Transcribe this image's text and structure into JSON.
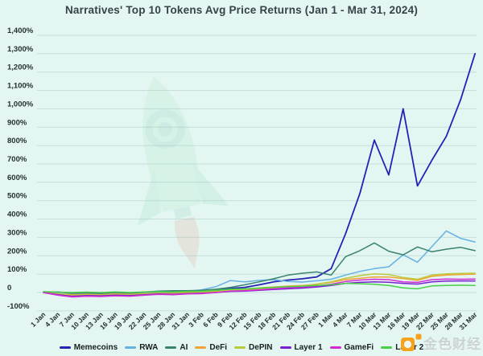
{
  "title": "Narratives' Top 10 Tokens Avg Price Returns (Jan 1 - Mar 31, 2024)",
  "watermark": {
    "rocket_icon": "rocket-icon",
    "brand_logo_icon": "jinse-logo-icon",
    "brand_text": "金色财经",
    "brand_color": "#f6a21d"
  },
  "chart_data": {
    "type": "line",
    "title": "Narratives' Top 10 Tokens Avg Price Returns (Jan 1 - Mar 31, 2024)",
    "xlabel": "",
    "ylabel": "",
    "grid": "horizontal",
    "legend_position": "bottom",
    "y_axis": {
      "min": -100,
      "max": 1400,
      "step": 100,
      "tick_labels": [
        "1,400%",
        "1,300%",
        "1,200%",
        "1,100%",
        "1,000%",
        "900%",
        "800%",
        "700%",
        "600%",
        "500%",
        "400%",
        "300%",
        "200%",
        "100%",
        "0",
        "-100%"
      ]
    },
    "categories": [
      "1 Jan",
      "4 Jan",
      "7 Jan",
      "10 Jan",
      "13 Jan",
      "16 Jan",
      "19 Jan",
      "22 Jan",
      "25 Jan",
      "28 Jan",
      "31 Jan",
      "3 Feb",
      "6 Feb",
      "9 Feb",
      "12 Feb",
      "15 Feb",
      "18 Feb",
      "21 Feb",
      "24 Feb",
      "27 Feb",
      "1 Mar",
      "4 Mar",
      "7 Mar",
      "10 Mar",
      "13 Mar",
      "16 Mar",
      "19 Mar",
      "22 Mar",
      "25 Mar",
      "28 Mar",
      "31 Mar"
    ],
    "series": [
      {
        "name": "Memecoins",
        "color": "#2323b5",
        "values": [
          0,
          -12,
          -18,
          -14,
          -16,
          -10,
          -14,
          -8,
          -2,
          2,
          5,
          8,
          14,
          22,
          28,
          42,
          58,
          68,
          75,
          85,
          130,
          320,
          540,
          830,
          640,
          1000,
          580,
          720,
          850,
          1050,
          1300
        ]
      },
      {
        "name": "RWA",
        "color": "#64b1e2",
        "values": [
          0,
          -5,
          -12,
          -8,
          -6,
          -2,
          -6,
          -2,
          3,
          2,
          6,
          15,
          32,
          65,
          58,
          66,
          70,
          60,
          57,
          64,
          72,
          95,
          115,
          130,
          140,
          205,
          165,
          250,
          335,
          295,
          275
        ]
      },
      {
        "name": "AI",
        "color": "#3a8171",
        "values": [
          0,
          3,
          -5,
          -2,
          -5,
          0,
          -3,
          2,
          8,
          10,
          10,
          12,
          18,
          28,
          42,
          58,
          75,
          95,
          105,
          112,
          95,
          195,
          228,
          270,
          225,
          205,
          248,
          222,
          236,
          246,
          228
        ]
      },
      {
        "name": "DeFi",
        "color": "#f0a437",
        "values": [
          0,
          -8,
          -12,
          -10,
          -12,
          -8,
          -10,
          -6,
          -3,
          -4,
          0,
          3,
          8,
          15,
          18,
          25,
          30,
          35,
          38,
          45,
          55,
          70,
          78,
          85,
          84,
          76,
          66,
          88,
          95,
          98,
          100
        ]
      },
      {
        "name": "DePIN",
        "color": "#bdc93c",
        "values": [
          0,
          -10,
          -14,
          -12,
          -14,
          -10,
          -12,
          -8,
          -5,
          -6,
          -2,
          0,
          5,
          12,
          15,
          20,
          25,
          32,
          36,
          46,
          58,
          78,
          92,
          102,
          98,
          82,
          72,
          95,
          102,
          104,
          105
        ]
      },
      {
        "name": "Layer 1",
        "color": "#7b1fd0",
        "values": [
          0,
          -12,
          -20,
          -16,
          -18,
          -14,
          -16,
          -12,
          -8,
          -10,
          -6,
          -4,
          0,
          6,
          8,
          12,
          16,
          20,
          24,
          30,
          38,
          50,
          55,
          58,
          56,
          50,
          46,
          58,
          62,
          63,
          63
        ]
      },
      {
        "name": "GameFi",
        "color": "#d42ad4",
        "values": [
          0,
          -15,
          -24,
          -20,
          -22,
          -18,
          -20,
          -15,
          -10,
          -12,
          -8,
          -6,
          0,
          8,
          10,
          15,
          20,
          26,
          30,
          36,
          45,
          60,
          68,
          72,
          70,
          58,
          55,
          70,
          73,
          72,
          73
        ]
      },
      {
        "name": "Layer 2",
        "color": "#49ce49",
        "values": [
          5,
          2,
          0,
          2,
          0,
          3,
          0,
          3,
          5,
          4,
          6,
          8,
          12,
          18,
          20,
          24,
          28,
          32,
          34,
          38,
          42,
          50,
          48,
          45,
          38,
          25,
          20,
          36,
          38,
          40,
          38
        ]
      }
    ]
  }
}
